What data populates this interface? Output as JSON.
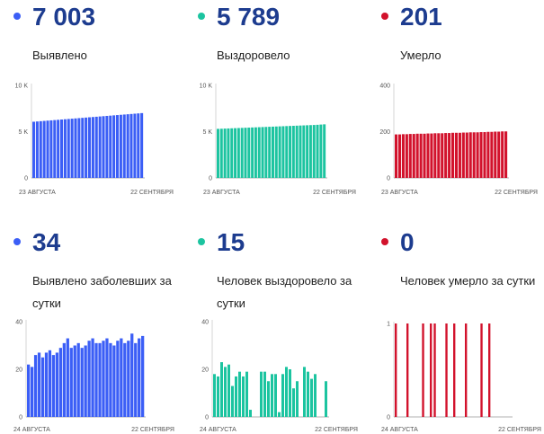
{
  "colors": {
    "blue": "#3b5ef6",
    "green": "#1cc4a0",
    "red": "#d2122c"
  },
  "panels": [
    {
      "value": "7 003",
      "label": "Выявлено",
      "color": "#3b5ef6"
    },
    {
      "value": "5 789",
      "label": "Выздоровело",
      "color": "#1cc4a0"
    },
    {
      "value": "201",
      "label": "Умерло",
      "color": "#d2122c"
    },
    {
      "value": "34",
      "label": "Выявлено заболевших за сутки",
      "color": "#3b5ef6"
    },
    {
      "value": "15",
      "label": "Человек выздоровело за сутки",
      "color": "#1cc4a0"
    },
    {
      "value": "0",
      "label": "Человек умерло за сутки",
      "color": "#d2122c"
    }
  ],
  "chart_data": [
    {
      "type": "bar",
      "xticks": [
        "23 АВГУСТА",
        "22 СЕНТЯБРЯ"
      ],
      "yticks": [
        "10 K",
        "5 K",
        "0"
      ],
      "ylim": [
        0,
        10000
      ],
      "color": "#3b5ef6",
      "values": [
        6070,
        6100,
        6130,
        6160,
        6190,
        6220,
        6250,
        6280,
        6310,
        6340,
        6370,
        6400,
        6430,
        6460,
        6490,
        6520,
        6550,
        6580,
        6610,
        6640,
        6670,
        6700,
        6730,
        6760,
        6790,
        6820,
        6850,
        6880,
        6910,
        6940,
        6970,
        7003
      ]
    },
    {
      "type": "bar",
      "xticks": [
        "23 АВГУСТА",
        "22 СЕНТЯБРЯ"
      ],
      "yticks": [
        "10 K",
        "5 K",
        "0"
      ],
      "ylim": [
        0,
        10000
      ],
      "color": "#1cc4a0",
      "values": [
        5300,
        5315,
        5330,
        5345,
        5360,
        5375,
        5390,
        5405,
        5420,
        5435,
        5450,
        5465,
        5480,
        5495,
        5510,
        5525,
        5540,
        5555,
        5570,
        5585,
        5600,
        5615,
        5630,
        5645,
        5660,
        5675,
        5690,
        5705,
        5720,
        5740,
        5765,
        5789
      ]
    },
    {
      "type": "bar",
      "xticks": [
        "23 АВГУСТА",
        "22 СЕНТЯБРЯ"
      ],
      "yticks": [
        "400",
        "200",
        "0"
      ],
      "ylim": [
        0,
        400
      ],
      "color": "#d2122c",
      "values": [
        188,
        188,
        189,
        189,
        190,
        190,
        191,
        191,
        191,
        192,
        192,
        193,
        193,
        193,
        194,
        194,
        195,
        195,
        195,
        196,
        196,
        197,
        197,
        197,
        198,
        198,
        199,
        199,
        200,
        200,
        201,
        201
      ]
    },
    {
      "type": "bar",
      "xticks": [
        "24 АВГУСТА",
        "22 СЕНТЯБРЯ"
      ],
      "yticks": [
        "40",
        "20",
        "0"
      ],
      "ylim": [
        0,
        40
      ],
      "color": "#3b5ef6",
      "values": [
        22,
        21,
        26,
        27,
        25,
        27,
        28,
        26,
        27,
        29,
        31,
        33,
        29,
        30,
        31,
        29,
        30,
        32,
        33,
        31,
        31,
        32,
        33,
        31,
        30,
        32,
        33,
        31,
        32,
        35,
        31,
        33,
        34
      ]
    },
    {
      "type": "bar",
      "xticks": [
        "24 АВГУСТА",
        "22 СЕНТЯБРЯ"
      ],
      "yticks": [
        "40",
        "20",
        "0"
      ],
      "ylim": [
        0,
        40
      ],
      "color": "#1cc4a0",
      "values": [
        18,
        17,
        23,
        21,
        22,
        13,
        17,
        19,
        17,
        19,
        3,
        0,
        0,
        19,
        19,
        15,
        18,
        18,
        2,
        18,
        21,
        20,
        12,
        15,
        0,
        21,
        19,
        16,
        18,
        0,
        0,
        15
      ]
    },
    {
      "type": "bar",
      "xticks": [
        "24 АВГУСТА",
        "22 СЕНТЯБРЯ"
      ],
      "yticks": [
        "1",
        "0"
      ],
      "ylim": [
        0,
        1
      ],
      "color": "#d2122c",
      "values": [
        1,
        0,
        0,
        1,
        0,
        0,
        0,
        1,
        0,
        1,
        1,
        0,
        0,
        1,
        0,
        1,
        0,
        0,
        1,
        0,
        0,
        0,
        1,
        0,
        1,
        0,
        0,
        0,
        0,
        0
      ]
    }
  ]
}
